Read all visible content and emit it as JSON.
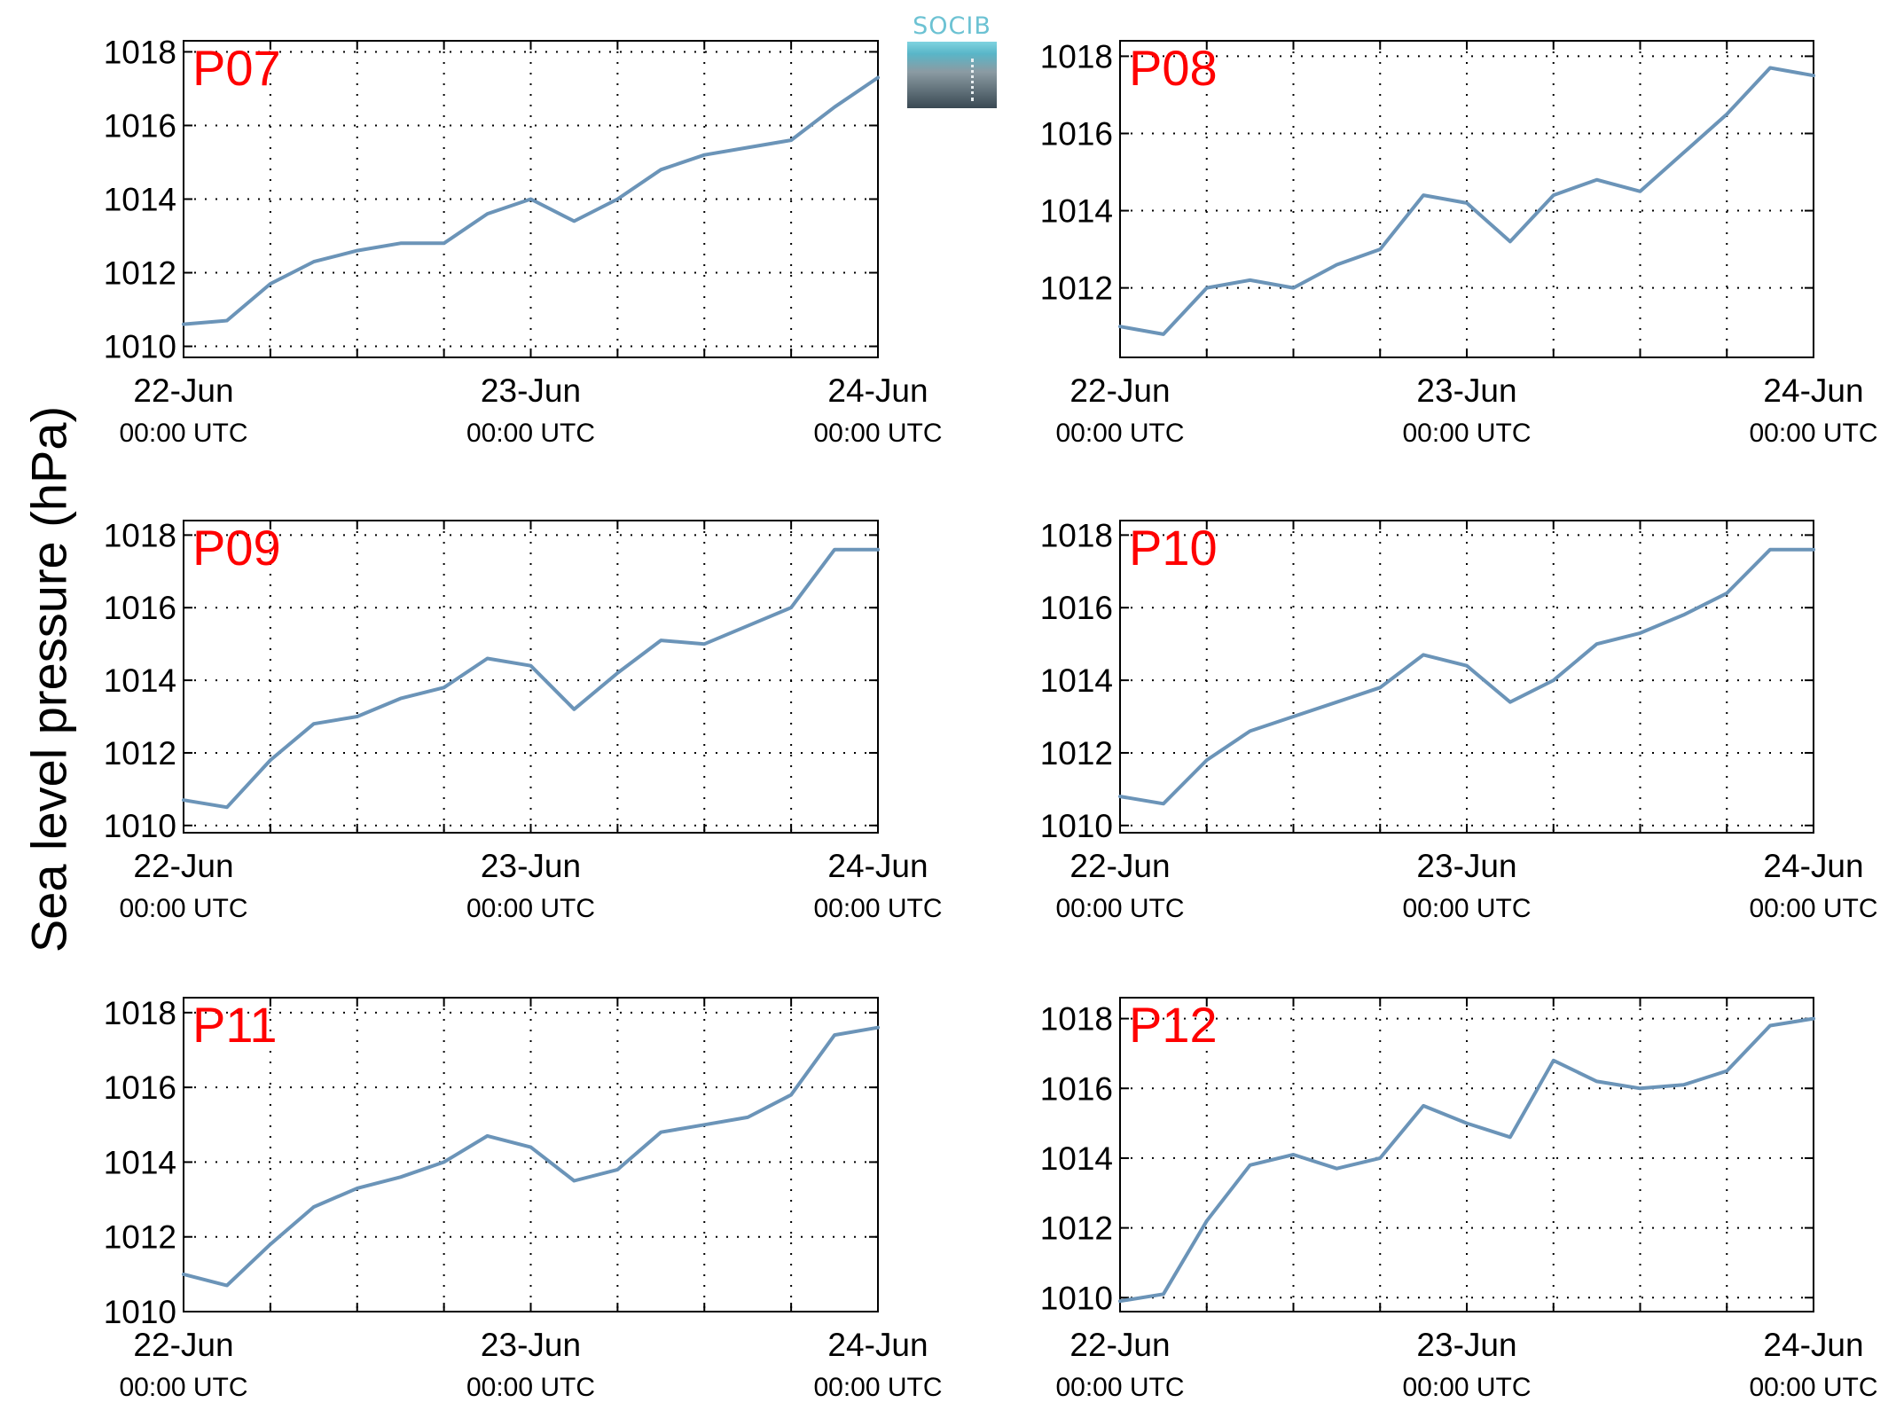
{
  "figure": {
    "ylabel": "Sea level pressure (hPa)",
    "logo_text": "SOCIB",
    "colors": {
      "line": "#6b94b8",
      "station_label": "#ff0000",
      "axes": "#000000",
      "grid": "#000000"
    }
  },
  "chart_data": [
    {
      "type": "line",
      "title": "P07",
      "x": [
        "22-Jun 00:00",
        "22-Jun 03:00",
        "22-Jun 06:00",
        "22-Jun 09:00",
        "22-Jun 12:00",
        "22-Jun 15:00",
        "22-Jun 18:00",
        "22-Jun 21:00",
        "23-Jun 00:00",
        "23-Jun 03:00",
        "23-Jun 06:00",
        "23-Jun 09:00",
        "23-Jun 12:00",
        "23-Jun 15:00",
        "23-Jun 18:00",
        "23-Jun 21:00",
        "24-Jun 00:00"
      ],
      "values": [
        1010.6,
        1010.7,
        1011.7,
        1012.3,
        1012.6,
        1012.8,
        1012.8,
        1013.6,
        1014.0,
        1013.4,
        1014.0,
        1014.8,
        1015.2,
        1015.4,
        1015.6,
        1016.5,
        1017.3
      ],
      "xticklabels": [
        "22-Jun",
        "23-Jun",
        "24-Jun"
      ],
      "xsublabel": "00:00 UTC",
      "yticks": [
        1010,
        1012,
        1014,
        1016,
        1018
      ],
      "ylim": [
        1009.7,
        1018.3
      ],
      "xlim": [
        "22-Jun 00:00",
        "24-Jun 00:00"
      ],
      "grid": true
    },
    {
      "type": "line",
      "title": "P08",
      "x": [
        "22-Jun 00:00",
        "22-Jun 03:00",
        "22-Jun 06:00",
        "22-Jun 09:00",
        "22-Jun 12:00",
        "22-Jun 15:00",
        "22-Jun 18:00",
        "22-Jun 21:00",
        "23-Jun 00:00",
        "23-Jun 03:00",
        "23-Jun 06:00",
        "23-Jun 09:00",
        "23-Jun 12:00",
        "23-Jun 15:00",
        "23-Jun 18:00",
        "23-Jun 21:00",
        "24-Jun 00:00"
      ],
      "values": [
        1011.0,
        1010.8,
        1012.0,
        1012.2,
        1012.0,
        1012.6,
        1013.0,
        1014.4,
        1014.2,
        1013.2,
        1014.4,
        1014.8,
        1014.5,
        1015.5,
        1016.5,
        1017.7,
        1017.5
      ],
      "xticklabels": [
        "22-Jun",
        "23-Jun",
        "24-Jun"
      ],
      "xsublabel": "00:00 UTC",
      "yticks": [
        1012,
        1014,
        1016,
        1018
      ],
      "ylim": [
        1010.2,
        1018.4
      ],
      "xlim": [
        "22-Jun 00:00",
        "24-Jun 00:00"
      ],
      "grid": true
    },
    {
      "type": "line",
      "title": "P09",
      "x": [
        "22-Jun 00:00",
        "22-Jun 03:00",
        "22-Jun 06:00",
        "22-Jun 09:00",
        "22-Jun 12:00",
        "22-Jun 15:00",
        "22-Jun 18:00",
        "22-Jun 21:00",
        "23-Jun 00:00",
        "23-Jun 03:00",
        "23-Jun 06:00",
        "23-Jun 09:00",
        "23-Jun 12:00",
        "23-Jun 15:00",
        "23-Jun 18:00",
        "23-Jun 21:00",
        "24-Jun 00:00"
      ],
      "values": [
        1010.7,
        1010.5,
        1011.8,
        1012.8,
        1013.0,
        1013.5,
        1013.8,
        1014.6,
        1014.4,
        1013.2,
        1014.2,
        1015.1,
        1015.0,
        1015.5,
        1016.0,
        1017.6,
        1017.6
      ],
      "xticklabels": [
        "22-Jun",
        "23-Jun",
        "24-Jun"
      ],
      "xsublabel": "00:00 UTC",
      "yticks": [
        1010,
        1012,
        1014,
        1016,
        1018
      ],
      "ylim": [
        1009.8,
        1018.4
      ],
      "xlim": [
        "22-Jun 00:00",
        "24-Jun 00:00"
      ],
      "grid": true
    },
    {
      "type": "line",
      "title": "P10",
      "x": [
        "22-Jun 00:00",
        "22-Jun 03:00",
        "22-Jun 06:00",
        "22-Jun 09:00",
        "22-Jun 12:00",
        "22-Jun 15:00",
        "22-Jun 18:00",
        "22-Jun 21:00",
        "23-Jun 00:00",
        "23-Jun 03:00",
        "23-Jun 06:00",
        "23-Jun 09:00",
        "23-Jun 12:00",
        "23-Jun 15:00",
        "23-Jun 18:00",
        "23-Jun 21:00",
        "24-Jun 00:00"
      ],
      "values": [
        1010.8,
        1010.6,
        1011.8,
        1012.6,
        1013.0,
        1013.4,
        1013.8,
        1014.7,
        1014.4,
        1013.4,
        1014.0,
        1015.0,
        1015.3,
        1015.8,
        1016.4,
        1017.6,
        1017.6
      ],
      "xticklabels": [
        "22-Jun",
        "23-Jun",
        "24-Jun"
      ],
      "xsublabel": "00:00 UTC",
      "yticks": [
        1010,
        1012,
        1014,
        1016,
        1018
      ],
      "ylim": [
        1009.8,
        1018.4
      ],
      "xlim": [
        "22-Jun 00:00",
        "24-Jun 00:00"
      ],
      "grid": true
    },
    {
      "type": "line",
      "title": "P11",
      "x": [
        "22-Jun 00:00",
        "22-Jun 03:00",
        "22-Jun 06:00",
        "22-Jun 09:00",
        "22-Jun 12:00",
        "22-Jun 15:00",
        "22-Jun 18:00",
        "22-Jun 21:00",
        "23-Jun 00:00",
        "23-Jun 03:00",
        "23-Jun 06:00",
        "23-Jun 09:00",
        "23-Jun 12:00",
        "23-Jun 15:00",
        "23-Jun 18:00",
        "23-Jun 21:00",
        "24-Jun 00:00"
      ],
      "values": [
        1011.0,
        1010.7,
        1011.8,
        1012.8,
        1013.3,
        1013.6,
        1014.0,
        1014.7,
        1014.4,
        1013.5,
        1013.8,
        1014.8,
        1015.0,
        1015.2,
        1015.8,
        1017.4,
        1017.6
      ],
      "xticklabels": [
        "22-Jun",
        "23-Jun",
        "24-Jun"
      ],
      "xsublabel": "00:00 UTC",
      "yticks": [
        1010,
        1012,
        1014,
        1016,
        1018
      ],
      "ylim": [
        1010.0,
        1018.4
      ],
      "xlim": [
        "22-Jun 00:00",
        "24-Jun 00:00"
      ],
      "grid": true
    },
    {
      "type": "line",
      "title": "P12",
      "x": [
        "22-Jun 00:00",
        "22-Jun 03:00",
        "22-Jun 06:00",
        "22-Jun 09:00",
        "22-Jun 12:00",
        "22-Jun 15:00",
        "22-Jun 18:00",
        "22-Jun 21:00",
        "23-Jun 00:00",
        "23-Jun 03:00",
        "23-Jun 06:00",
        "23-Jun 09:00",
        "23-Jun 12:00",
        "23-Jun 15:00",
        "23-Jun 18:00",
        "23-Jun 21:00",
        "24-Jun 00:00"
      ],
      "values": [
        1009.9,
        1010.1,
        1012.2,
        1013.8,
        1014.1,
        1013.7,
        1014.0,
        1015.5,
        1015.0,
        1014.6,
        1016.8,
        1016.2,
        1016.0,
        1016.1,
        1016.5,
        1017.8,
        1018.0
      ],
      "xticklabels": [
        "22-Jun",
        "23-Jun",
        "24-Jun"
      ],
      "xsublabel": "00:00 UTC",
      "yticks": [
        1010,
        1012,
        1014,
        1016,
        1018
      ],
      "ylim": [
        1009.6,
        1018.6
      ],
      "xlim": [
        "22-Jun 00:00",
        "24-Jun 00:00"
      ],
      "grid": true
    }
  ]
}
